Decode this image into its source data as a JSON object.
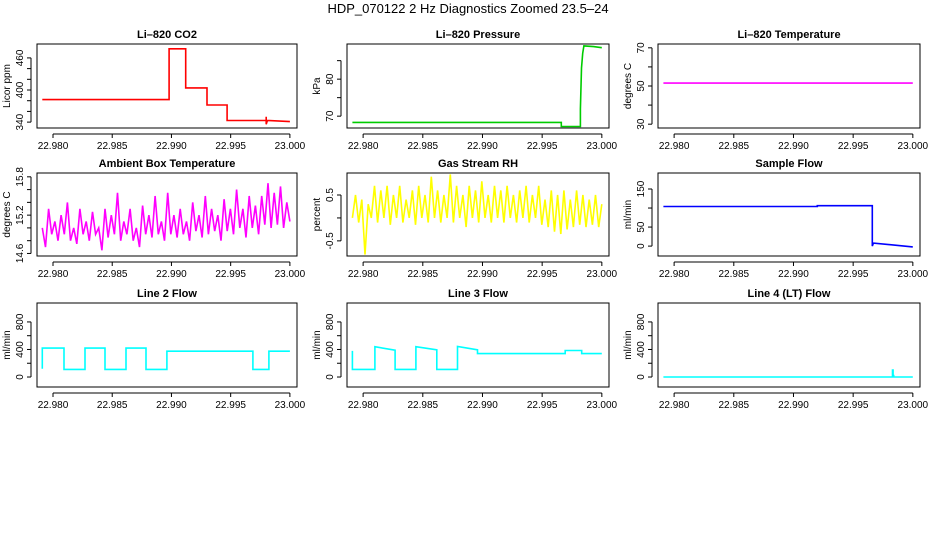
{
  "title": "HDP_070122  2 Hz Diagnostics Zoomed 23.5–24",
  "chart_data": [
    {
      "type": "line",
      "title": "Li–820 CO2",
      "ylabel": "Licor ppm",
      "color": "#ff0000",
      "xlim": [
        22.97865,
        23.0006
      ],
      "ylim": [
        329,
        486
      ],
      "xticks": [
        "22.980",
        "22.985",
        "22.990",
        "22.995",
        "23.000"
      ],
      "yticks": [
        340,
        360,
        380,
        400,
        420,
        440,
        460
      ],
      "ytick_labels": [
        "340",
        "",
        "",
        "400",
        "",
        "",
        "460"
      ],
      "series": [
        {
          "x": [
            22.9791,
            22.9898,
            22.9898,
            22.9912,
            22.9912,
            22.993,
            22.993,
            22.9947,
            22.9947,
            22.998,
            22.998,
            22.998,
            22.9981,
            23.0
          ],
          "y": [
            382,
            382,
            477,
            477,
            404,
            404,
            372,
            372,
            343,
            343,
            350,
            336,
            343,
            341
          ]
        }
      ]
    },
    {
      "type": "line",
      "title": "Li–820 Pressure",
      "ylabel": "kPa",
      "color": "#00cc00",
      "xlim": [
        22.97865,
        23.0006
      ],
      "ylim": [
        66.8,
        89.5
      ],
      "xticks": [
        "22.980",
        "22.985",
        "22.990",
        "22.995",
        "23.000"
      ],
      "yticks": [
        70,
        75,
        80,
        85
      ],
      "ytick_labels": [
        "70",
        "",
        "80",
        ""
      ],
      "series": [
        {
          "x": [
            22.9791,
            22.9966,
            22.9966,
            22.9982,
            22.9982,
            22.9983,
            22.9984,
            22.9985,
            22.9993,
            23.0
          ],
          "y": [
            68.3,
            68.3,
            67.2,
            67.2,
            72,
            83,
            87,
            89,
            88.8,
            88.5
          ]
        }
      ]
    },
    {
      "type": "line",
      "title": "Li–820 Temperature",
      "ylabel": "degrees C",
      "color": "#ff00ff",
      "xlim": [
        22.97865,
        23.0006
      ],
      "ylim": [
        28,
        72
      ],
      "xticks": [
        "22.980",
        "22.985",
        "22.990",
        "22.995",
        "23.000"
      ],
      "yticks": [
        30,
        40,
        50,
        60,
        70
      ],
      "ytick_labels": [
        "30",
        "",
        "50",
        "",
        "70"
      ],
      "series": [
        {
          "x": [
            22.9791,
            23.0
          ],
          "y": [
            51.5,
            51.5
          ]
        }
      ]
    },
    {
      "type": "line",
      "title": "Ambient Box Temperature",
      "ylabel": "degrees C",
      "color": "#ff00ff",
      "xlim": [
        22.97865,
        23.0006
      ],
      "ylim": [
        14.56,
        15.86
      ],
      "xticks": [
        "22.980",
        "22.985",
        "22.990",
        "22.995",
        "23.000"
      ],
      "yticks": [
        14.6,
        14.8,
        15.0,
        15.2,
        15.4,
        15.6,
        15.8
      ],
      "ytick_labels": [
        "14.6",
        "",
        "",
        "15.2",
        "",
        "",
        "15.8"
      ],
      "series": [
        {
          "x_from": 22.9791,
          "x_to": 23.0,
          "y": [
            15.0,
            14.7,
            15.3,
            14.9,
            15.1,
            14.8,
            15.2,
            14.9,
            15.4,
            14.8,
            15.0,
            14.75,
            15.3,
            14.9,
            15.1,
            14.8,
            15.25,
            14.9,
            15.0,
            14.65,
            15.3,
            14.85,
            15.2,
            14.9,
            15.55,
            14.8,
            15.1,
            14.9,
            15.3,
            14.8,
            15.0,
            14.7,
            15.35,
            14.9,
            15.2,
            14.85,
            15.5,
            14.9,
            15.1,
            14.8,
            15.55,
            14.9,
            15.2,
            14.85,
            15.3,
            14.9,
            15.1,
            14.8,
            15.4,
            14.95,
            15.2,
            14.85,
            15.5,
            14.9,
            15.3,
            14.95,
            15.2,
            14.8,
            15.45,
            14.95,
            15.3,
            14.9,
            15.6,
            15.0,
            15.3,
            14.85,
            15.5,
            15.0,
            15.35,
            14.9,
            15.5,
            15.05,
            15.7,
            15.0,
            15.55,
            15.05,
            15.65,
            15.0,
            15.4,
            15.1
          ]
        }
      ]
    },
    {
      "type": "line",
      "title": "Gas Stream RH",
      "ylabel": "percent",
      "color": "#ffff00",
      "xlim": [
        22.97865,
        23.0006
      ],
      "ylim": [
        -0.83,
        0.98
      ],
      "xticks": [
        "22.980",
        "22.985",
        "22.990",
        "22.995",
        "23.000"
      ],
      "yticks": [
        -0.5,
        0,
        0.5
      ],
      "ytick_labels": [
        "-0.5",
        "",
        "0.5"
      ],
      "series": [
        {
          "x_from": 22.9791,
          "x_to": 23.0,
          "y": [
            0.0,
            0.5,
            -0.1,
            0.4,
            -0.8,
            0.3,
            0.0,
            0.7,
            -0.1,
            0.6,
            0.0,
            0.7,
            -0.15,
            0.5,
            0.0,
            0.7,
            -0.1,
            0.4,
            0.0,
            0.6,
            -0.15,
            0.7,
            0.0,
            0.5,
            -0.1,
            0.9,
            0.0,
            0.6,
            -0.1,
            0.5,
            0.0,
            0.95,
            -0.1,
            0.7,
            0.0,
            0.5,
            -0.2,
            0.7,
            0.0,
            0.6,
            -0.1,
            0.8,
            0.0,
            0.5,
            -0.1,
            0.7,
            0.0,
            0.6,
            -0.1,
            0.7,
            0.0,
            0.5,
            -0.1,
            0.6,
            0.0,
            0.7,
            -0.1,
            0.5,
            0.0,
            0.7,
            -0.15,
            0.4,
            -0.2,
            0.6,
            -0.3,
            0.5,
            -0.35,
            0.6,
            -0.25,
            0.4,
            -0.2,
            0.6,
            -0.15,
            0.5,
            -0.2,
            0.4,
            -0.15,
            0.5,
            -0.2,
            0.3
          ]
        }
      ]
    },
    {
      "type": "line",
      "title": "Sample Flow",
      "ylabel": "ml/min",
      "color": "#0000ff",
      "xlim": [
        22.97865,
        23.0006
      ],
      "ylim": [
        -26,
        192
      ],
      "xticks": [
        "22.980",
        "22.985",
        "22.990",
        "22.995",
        "23.000"
      ],
      "yticks": [
        0,
        50,
        100,
        150
      ],
      "ytick_labels": [
        "0",
        "50",
        "",
        "150"
      ],
      "series": [
        {
          "x": [
            22.9791,
            22.992,
            22.992,
            22.9966,
            22.9966,
            22.9967,
            23.0
          ],
          "y": [
            104,
            104,
            106,
            106,
            0,
            8,
            -2
          ]
        }
      ]
    },
    {
      "type": "line",
      "title": "Line 2 Flow",
      "ylabel": "ml/min",
      "color": "#00ffff",
      "xlim": [
        22.97865,
        23.0006
      ],
      "ylim": [
        -145,
        1075
      ],
      "xticks": [
        "22.980",
        "22.985",
        "22.990",
        "22.995",
        "23.000"
      ],
      "yticks": [
        0,
        200,
        400,
        600,
        800
      ],
      "ytick_labels": [
        "0",
        "",
        "400",
        "",
        "800"
      ],
      "series": [
        {
          "x": [
            22.9791,
            22.9791,
            22.98093,
            22.98093,
            22.9827,
            22.9827,
            22.98439,
            22.98439,
            22.98616,
            22.98616,
            22.98785,
            22.98785,
            22.98962,
            22.98962,
            22.99688,
            22.99688,
            22.99823,
            22.99823,
            23.0
          ],
          "y": [
            120,
            420,
            420,
            110,
            110,
            420,
            420,
            110,
            110,
            420,
            420,
            110,
            110,
            375,
            375,
            110,
            110,
            375,
            375
          ]
        }
      ]
    },
    {
      "type": "line",
      "title": "Line 3 Flow",
      "ylabel": "ml/min",
      "color": "#00ffff",
      "xlim": [
        22.97865,
        23.0006
      ],
      "ylim": [
        -145,
        1075
      ],
      "xticks": [
        "22.980",
        "22.985",
        "22.990",
        "22.995",
        "23.000"
      ],
      "yticks": [
        0,
        200,
        400,
        600,
        800
      ],
      "ytick_labels": [
        "0",
        "",
        "400",
        "",
        "800"
      ],
      "series": [
        {
          "x": [
            22.9791,
            22.9791,
            22.98099,
            22.98099,
            22.98268,
            22.98268,
            22.98442,
            22.98442,
            22.98617,
            22.98617,
            22.98791,
            22.98791,
            22.98958,
            22.98958,
            22.99693,
            22.99693,
            22.99831,
            22.99831,
            23.0
          ],
          "y": [
            380,
            110,
            110,
            440,
            390,
            110,
            110,
            440,
            395,
            110,
            110,
            445,
            395,
            340,
            340,
            385,
            385,
            340,
            340
          ]
        }
      ]
    },
    {
      "type": "line",
      "title": "Line 4 (LT) Flow",
      "ylabel": "ml/min",
      "color": "#00ffff",
      "xlim": [
        22.97865,
        23.0006
      ],
      "ylim": [
        -145,
        1075
      ],
      "xticks": [
        "22.980",
        "22.985",
        "22.990",
        "22.995",
        "23.000"
      ],
      "yticks": [
        0,
        200,
        400,
        600,
        800
      ],
      "ytick_labels": [
        "0",
        "",
        "400",
        "",
        "800"
      ],
      "series": [
        {
          "x": [
            22.9791,
            22.9983,
            22.9983,
            22.99835,
            22.99835,
            22.9984,
            22.9984,
            23.0
          ],
          "y": [
            0,
            0,
            100,
            100,
            20,
            20,
            0,
            0
          ]
        }
      ]
    }
  ]
}
